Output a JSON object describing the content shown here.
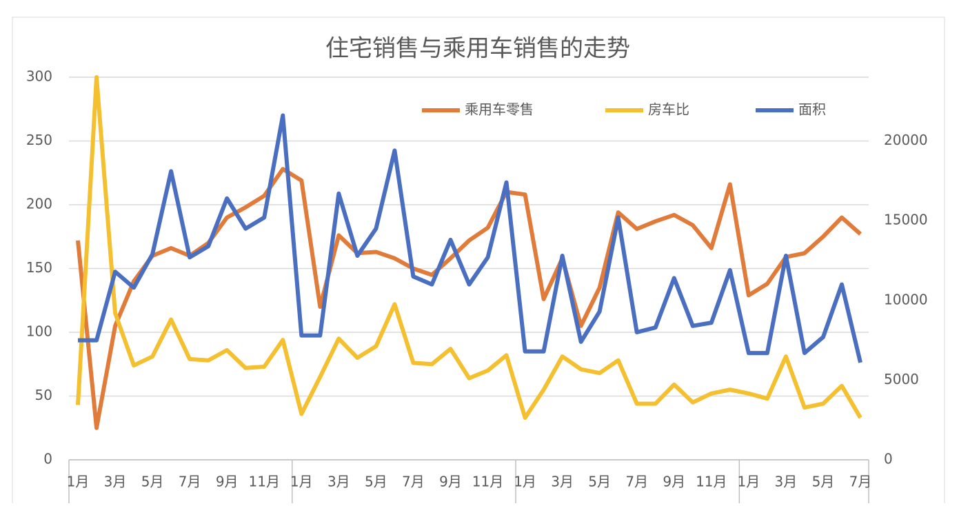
{
  "chart_data": {
    "type": "line",
    "title": "住宅销售与乘用车销售的走势",
    "categories": [
      "1月",
      null,
      "3月",
      null,
      "5月",
      null,
      "7月",
      null,
      "9月",
      null,
      "11月",
      null,
      "1月",
      null,
      "3月",
      null,
      "5月",
      null,
      "7月",
      null,
      "9月",
      null,
      "11月",
      null,
      "1月",
      null,
      "3月",
      null,
      "5月",
      null,
      "7月",
      null,
      "9月",
      null,
      "11月",
      null,
      "1月",
      null,
      "3月",
      null,
      "5月",
      null,
      "7月"
    ],
    "series": [
      {
        "name": "乘用车零售",
        "color": "#e07b39",
        "values": [
          172,
          25,
          105,
          140,
          160,
          166,
          160,
          170,
          190,
          198,
          207,
          228,
          219,
          120,
          176,
          162,
          163,
          158,
          150,
          145,
          158,
          172,
          182,
          210,
          208,
          126,
          158,
          105,
          135,
          194,
          181,
          187,
          192,
          184,
          166,
          216,
          129,
          138,
          159,
          162,
          175,
          190,
          177
        ]
      },
      {
        "name": "房车比",
        "color": "#f4c030",
        "values": [
          43,
          300,
          115,
          74,
          81,
          110,
          79,
          78,
          86,
          72,
          73,
          94,
          36,
          65,
          95,
          80,
          89,
          122,
          76,
          75,
          87,
          64,
          70,
          82,
          33,
          55,
          81,
          71,
          68,
          78,
          44,
          44,
          59,
          45,
          52,
          55,
          52,
          48,
          81,
          41,
          44,
          58,
          33
        ]
      },
      {
        "name": "面积",
        "color": "#4a6fc1",
        "axis": "y2",
        "values": [
          7500,
          7500,
          11800,
          10800,
          12900,
          18100,
          12700,
          13400,
          16400,
          14500,
          15200,
          21600,
          7800,
          7800,
          16700,
          12800,
          14500,
          19400,
          11500,
          11000,
          13800,
          11000,
          12700,
          17400,
          6800,
          6800,
          12800,
          7400,
          9300,
          15200,
          8000,
          8300,
          11400,
          8400,
          8600,
          11900,
          6700,
          6700,
          12800,
          6700,
          7700,
          11000,
          6100
        ]
      }
    ],
    "ylim": [
      0,
      300
    ],
    "yticks": [
      0,
      50,
      100,
      150,
      200,
      250,
      300
    ],
    "y2lim": [
      0,
      24000
    ],
    "y2ticks": [
      0,
      5000,
      10000,
      15000,
      20000
    ],
    "grid": true,
    "legend": "top-right"
  }
}
